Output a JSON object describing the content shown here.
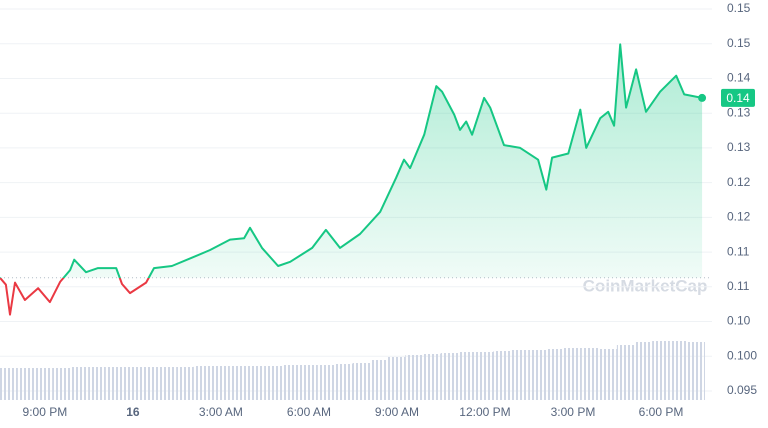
{
  "chart_data": {
    "type": "line",
    "x": [
      19.47,
      19.67,
      19.81,
      19.98,
      20.32,
      20.77,
      21.17,
      21.52,
      21.86,
      22.0,
      22.4,
      22.81,
      23.43,
      23.63,
      23.9,
      24.45,
      24.72,
      25.33,
      26.02,
      26.63,
      27.31,
      27.79,
      27.99,
      28.4,
      28.95,
      29.36,
      30.11,
      30.58,
      31.06,
      31.74,
      32.43,
      32.97,
      33.24,
      33.45,
      33.93,
      34.34,
      34.54,
      34.95,
      35.15,
      35.36,
      35.56,
      35.97,
      36.18,
      36.65,
      37.2,
      37.81,
      38.09,
      38.29,
      38.84,
      39.25,
      39.45,
      39.93,
      40.2,
      40.4,
      40.61,
      40.81,
      41.15,
      41.49,
      41.97,
      42.52,
      42.79,
      43.4
    ],
    "values": [
      0.1113,
      0.1103,
      0.106,
      0.1106,
      0.1081,
      0.1098,
      0.1078,
      0.1107,
      0.1124,
      0.1139,
      0.1121,
      0.1127,
      0.1127,
      0.1104,
      0.1091,
      0.1106,
      0.1127,
      0.113,
      0.1142,
      0.1153,
      0.1168,
      0.117,
      0.1185,
      0.1156,
      0.113,
      0.1136,
      0.1156,
      0.1182,
      0.1156,
      0.1176,
      0.1208,
      0.1257,
      0.1283,
      0.1271,
      0.1319,
      0.1389,
      0.1381,
      0.1348,
      0.1326,
      0.1338,
      0.1319,
      0.1372,
      0.1358,
      0.1304,
      0.13,
      0.1283,
      0.124,
      0.1286,
      0.1292,
      0.1355,
      0.13,
      0.1343,
      0.1352,
      0.1332,
      0.1449,
      0.1358,
      0.1413,
      0.1352,
      0.1381,
      0.1404,
      0.1377,
      0.1372
    ],
    "up_color": "#16c784",
    "down_color": "#ea3943",
    "baseline": 0.1113,
    "current_value": 0.1372,
    "current_label": "0.14",
    "watermark": "CoinMarketCap",
    "volume": {
      "color": "#cfd6e4",
      "values": [
        32,
        32,
        32,
        32,
        33,
        33,
        33,
        33,
        33,
        33,
        33,
        34,
        34,
        34,
        34,
        34,
        35,
        35,
        35,
        36,
        37,
        40,
        43,
        45,
        46,
        47,
        48,
        48,
        49,
        50,
        50,
        51,
        52,
        52,
        51,
        55,
        58,
        59,
        59,
        58
      ]
    },
    "xlim": [
      19.47,
      43.5
    ],
    "ylim": [
      0.0937,
      0.1513
    ],
    "xticks": [
      {
        "value": 21,
        "label": "9:00 PM"
      },
      {
        "value": 24,
        "label": "16"
      },
      {
        "value": 27,
        "label": "3:00 AM"
      },
      {
        "value": 30,
        "label": "6:00 AM"
      },
      {
        "value": 33,
        "label": "9:00 AM"
      },
      {
        "value": 36,
        "label": "12:00 PM"
      },
      {
        "value": 39,
        "label": "3:00 PM"
      },
      {
        "value": 42,
        "label": "6:00 PM"
      }
    ],
    "yticks": [
      {
        "value": 0.095,
        "label": "0.095"
      },
      {
        "value": 0.1,
        "label": "0.100"
      },
      {
        "value": 0.105,
        "label": "0.10"
      },
      {
        "value": 0.11,
        "label": "0.11"
      },
      {
        "value": 0.115,
        "label": "0.11"
      },
      {
        "value": 0.12,
        "label": "0.12"
      },
      {
        "value": 0.125,
        "label": "0.12"
      },
      {
        "value": 0.13,
        "label": "0.13"
      },
      {
        "value": 0.135,
        "label": "0.13"
      },
      {
        "value": 0.14,
        "label": "0.14"
      },
      {
        "value": 0.145,
        "label": "0.15"
      },
      {
        "value": 0.15,
        "label": "0.15"
      }
    ],
    "grid": true
  }
}
